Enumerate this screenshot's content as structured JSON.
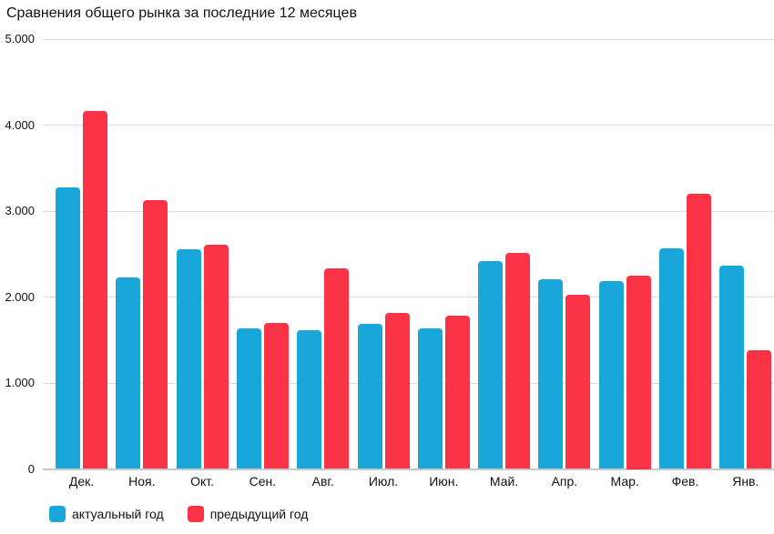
{
  "chart_data": {
    "type": "bar",
    "title": "Сравнения общего рынка за последние 12 месяцев",
    "categories": [
      "Дек.",
      "Ноя.",
      "Окт.",
      "Сен.",
      "Авг.",
      "Июл.",
      "Июн.",
      "Май.",
      "Апр.",
      "Мар.",
      "Фев.",
      "Янв."
    ],
    "series": [
      {
        "name": "актуальный год",
        "color": "#18A7D8",
        "values": [
          3270,
          2230,
          2560,
          1640,
          1610,
          1690,
          1640,
          2420,
          2210,
          2190,
          2570,
          2360
        ]
      },
      {
        "name": "предыдущий год",
        "color": "#FB3347",
        "values": [
          4160,
          3130,
          2610,
          1700,
          2330,
          1820,
          1780,
          2510,
          2030,
          2250,
          3200,
          1380
        ]
      }
    ],
    "ylim": [
      0,
      5000
    ],
    "yticks": [
      {
        "value": 0,
        "label": "0"
      },
      {
        "value": 1000,
        "label": "1.000"
      },
      {
        "value": 2000,
        "label": "2.000"
      },
      {
        "value": 3000,
        "label": "3.000"
      },
      {
        "value": 4000,
        "label": "4.000"
      },
      {
        "value": 5000,
        "label": "5.000"
      }
    ],
    "grid": true,
    "legend_position": "bottom-left"
  }
}
